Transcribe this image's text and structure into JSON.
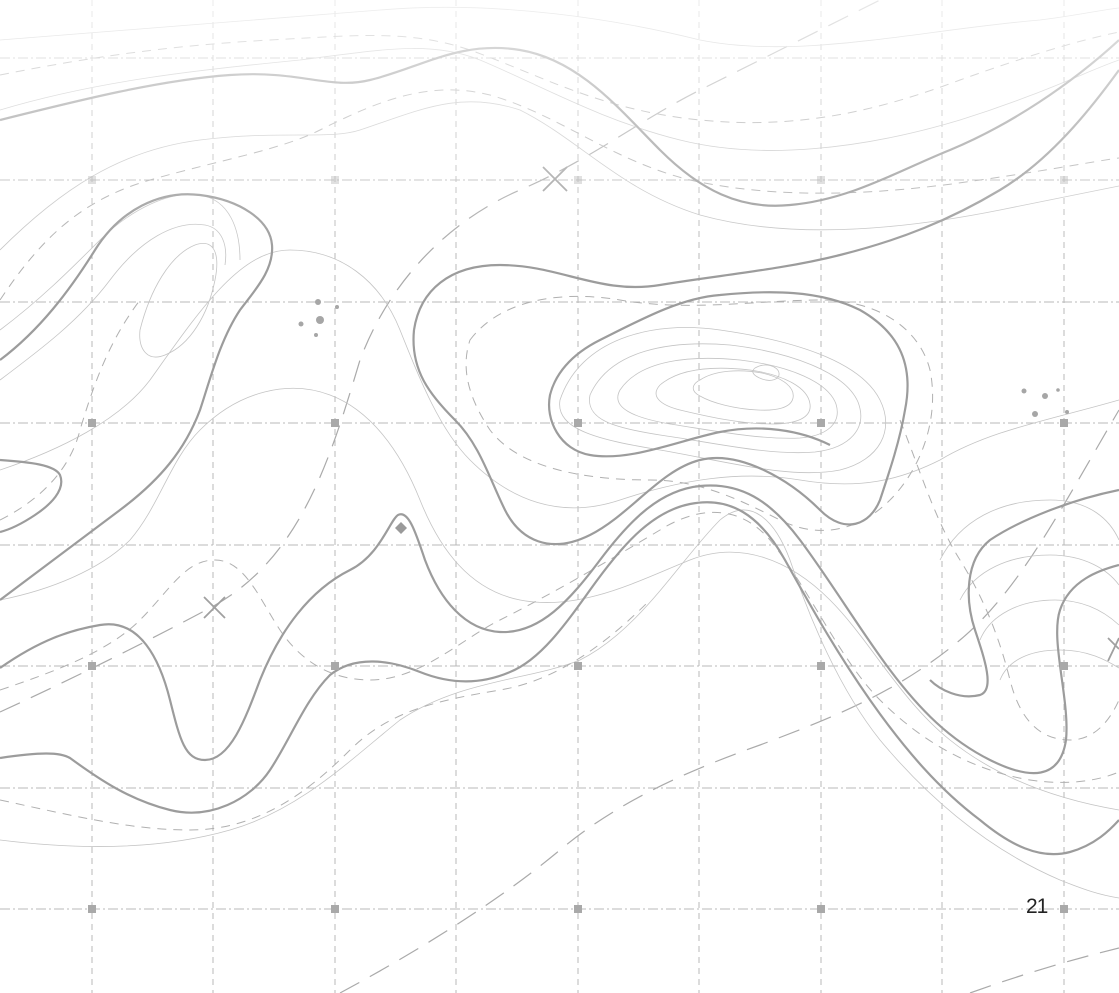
{
  "page_number": "21",
  "colors": {
    "background": "#ffffff",
    "grid_line": "#b9b9b9",
    "contour_thin": "#c4c4c4",
    "contour_thick": "#9c9c9c",
    "marker": "#a9a9a9",
    "page_number_text": "#222222"
  },
  "markers": {
    "grid_nodes": "square-marker",
    "spot_heights": "cross-marker",
    "summit": "diamond-marker"
  }
}
